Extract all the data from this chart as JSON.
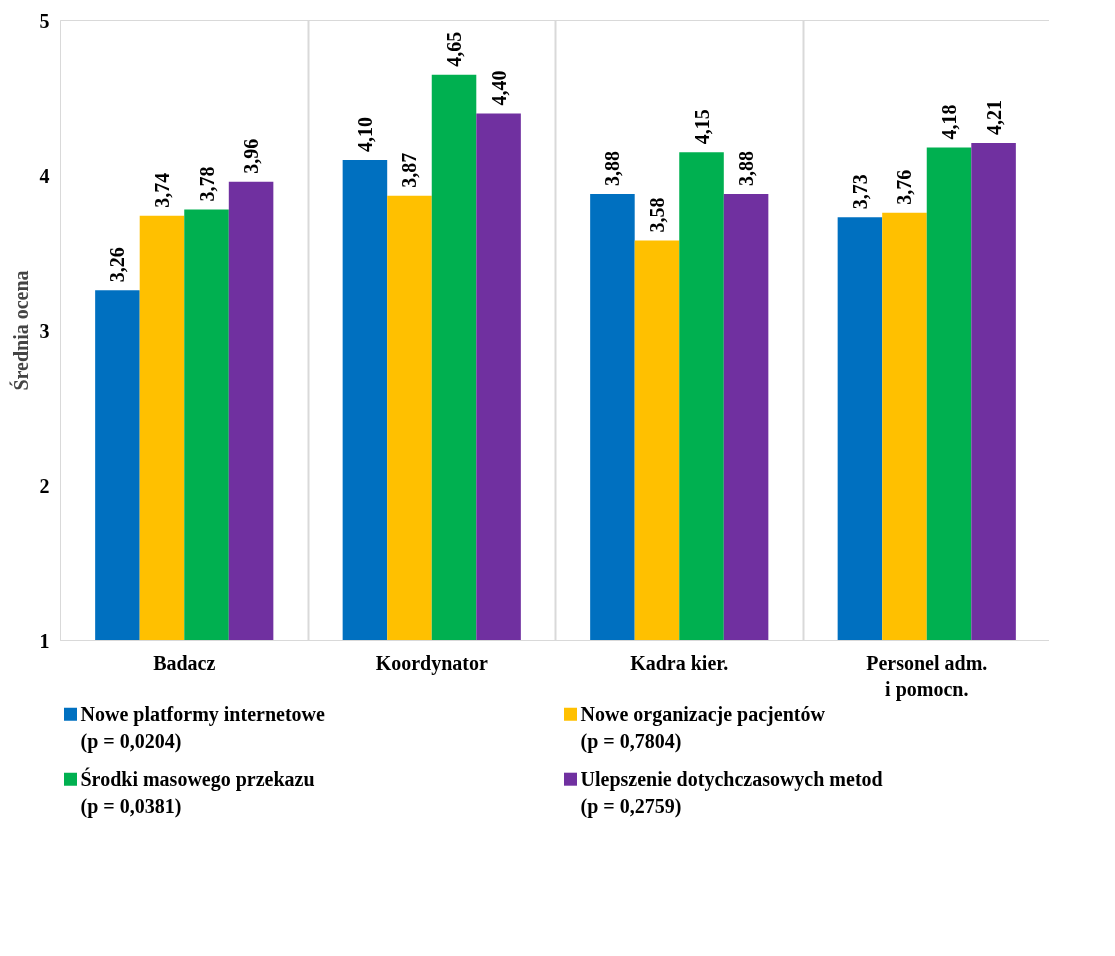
{
  "chart_data": {
    "type": "bar",
    "ylabel": "Średnia ocena",
    "categories": [
      "Badacz",
      "Koordynator",
      "Kadra kier.",
      "Personel adm.\ni pomocn."
    ],
    "series": [
      {
        "name": "Nowe platformy internetowe\n(p = 0,0204)",
        "color": "#0070c0",
        "values": [
          3.26,
          4.1,
          3.88,
          3.73
        ],
        "value_labels": [
          "3,26",
          "4,10",
          "3,88",
          "3,73"
        ]
      },
      {
        "name": "Nowe organizacje pacjentów\n(p = 0,7804)",
        "color": "#ffc000",
        "values": [
          3.74,
          3.87,
          3.58,
          3.76
        ],
        "value_labels": [
          "3,74",
          "3,87",
          "3,58",
          "3,76"
        ]
      },
      {
        "name": "Środki masowego przekazu\n(p = 0,0381)",
        "color": "#00b050",
        "values": [
          3.78,
          4.65,
          4.15,
          4.18
        ],
        "value_labels": [
          "3,78",
          "4,65",
          "4,15",
          "4,18"
        ]
      },
      {
        "name": "Ulepszenie dotychczasowych metod\n(p = 0,2759)",
        "color": "#7030a0",
        "values": [
          3.96,
          4.4,
          3.88,
          4.21
        ],
        "value_labels": [
          "3,96",
          "4,40",
          "3,88",
          "4,21"
        ]
      }
    ],
    "ylim": [
      1,
      5
    ],
    "yticks": [
      1,
      2,
      3,
      4,
      5
    ],
    "grid": "x",
    "legend": "bottom"
  }
}
